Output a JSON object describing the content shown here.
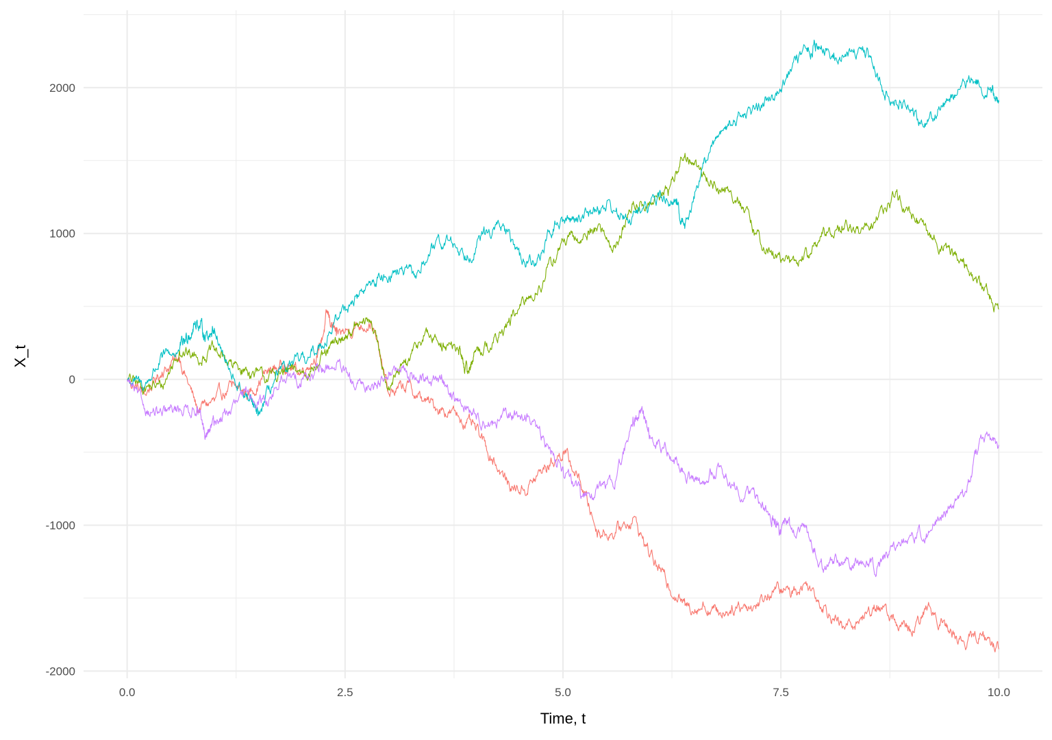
{
  "chart_data": {
    "type": "line",
    "xlabel": "Time, t",
    "ylabel": "X_t",
    "xlim": [
      -0.5,
      10.5
    ],
    "ylim": [
      -2050,
      2530
    ],
    "xticks": [
      0.0,
      2.5,
      5.0,
      7.5,
      10.0
    ],
    "xtick_labels": [
      "0.0",
      "2.5",
      "5.0",
      "7.5",
      "10.0"
    ],
    "yticks": [
      -2000,
      -1000,
      0,
      1000,
      2000
    ],
    "ytick_labels": [
      "-2000",
      "-1000",
      "0",
      "1000",
      "2000"
    ],
    "grid": true,
    "legend": "none",
    "series": [
      {
        "color": "#F8766D",
        "x": [
          0,
          0.2,
          0.4,
          0.6,
          0.8,
          1.0,
          1.2,
          1.4,
          1.6,
          1.8,
          2.0,
          2.2,
          2.3,
          2.4,
          2.6,
          2.8,
          3.0,
          3.2,
          3.4,
          3.6,
          3.8,
          4.0,
          4.2,
          4.4,
          4.6,
          4.8,
          5.0,
          5.2,
          5.4,
          5.6,
          5.8,
          6.0,
          6.2,
          6.4,
          6.6,
          6.8,
          7.0,
          7.2,
          7.4,
          7.6,
          7.8,
          8.0,
          8.2,
          8.4,
          8.6,
          8.8,
          9.0,
          9.2,
          9.4,
          9.6,
          9.8,
          10.0
        ],
        "y": [
          0,
          -100,
          50,
          150,
          -200,
          -150,
          -50,
          -100,
          50,
          100,
          50,
          200,
          450,
          300,
          350,
          400,
          -100,
          -50,
          -150,
          -200,
          -250,
          -350,
          -550,
          -750,
          -750,
          -600,
          -500,
          -700,
          -1050,
          -1050,
          -950,
          -1200,
          -1400,
          -1550,
          -1550,
          -1600,
          -1550,
          -1550,
          -1450,
          -1450,
          -1400,
          -1550,
          -1700,
          -1650,
          -1550,
          -1650,
          -1750,
          -1550,
          -1700,
          -1800,
          -1750,
          -1850
        ]
      },
      {
        "color": "#7CAE00",
        "x": [
          0,
          0.2,
          0.4,
          0.6,
          0.8,
          1.0,
          1.2,
          1.4,
          1.6,
          1.8,
          2.0,
          2.2,
          2.4,
          2.6,
          2.8,
          3.0,
          3.2,
          3.4,
          3.6,
          3.8,
          3.9,
          4.0,
          4.2,
          4.4,
          4.6,
          4.8,
          5.0,
          5.2,
          5.4,
          5.6,
          5.8,
          6.0,
          6.2,
          6.4,
          6.6,
          6.8,
          7.0,
          7.2,
          7.4,
          7.6,
          7.8,
          8.0,
          8.2,
          8.4,
          8.6,
          8.8,
          9.0,
          9.2,
          9.4,
          9.6,
          9.8,
          10.0
        ],
        "y": [
          0,
          -50,
          -50,
          200,
          150,
          200,
          100,
          50,
          0,
          50,
          50,
          100,
          250,
          350,
          400,
          -50,
          100,
          300,
          250,
          200,
          50,
          200,
          250,
          400,
          550,
          700,
          950,
          950,
          1050,
          900,
          1200,
          1200,
          1300,
          1550,
          1400,
          1300,
          1250,
          1000,
          850,
          800,
          850,
          1000,
          1050,
          1000,
          1100,
          1250,
          1100,
          1000,
          900,
          800,
          650,
          480
        ]
      },
      {
        "color": "#00BFC4",
        "x": [
          0,
          0.2,
          0.4,
          0.6,
          0.7,
          0.8,
          0.9,
          1.0,
          1.2,
          1.4,
          1.5,
          1.7,
          1.9,
          2.1,
          2.3,
          2.5,
          2.7,
          2.9,
          3.1,
          3.3,
          3.5,
          3.7,
          3.9,
          4.1,
          4.3,
          4.5,
          4.7,
          4.9,
          5.1,
          5.3,
          5.5,
          5.7,
          5.9,
          6.1,
          6.3,
          6.4,
          6.6,
          6.8,
          7.0,
          7.2,
          7.4,
          7.6,
          7.8,
          7.9,
          8.1,
          8.3,
          8.5,
          8.7,
          8.9,
          9.1,
          9.3,
          9.5,
          9.7,
          9.9,
          10.0
        ],
        "y": [
          0,
          -50,
          150,
          200,
          300,
          400,
          300,
          350,
          0,
          -150,
          -250,
          0,
          100,
          150,
          300,
          500,
          600,
          700,
          750,
          700,
          900,
          950,
          850,
          1000,
          1050,
          850,
          800,
          1050,
          1100,
          1150,
          1200,
          1100,
          1150,
          1250,
          1200,
          1050,
          1450,
          1700,
          1800,
          1850,
          1950,
          2100,
          2250,
          2300,
          2200,
          2250,
          2250,
          1950,
          1900,
          1750,
          1850,
          1950,
          2050,
          2000,
          1900
        ]
      },
      {
        "color": "#C77CFF",
        "x": [
          0,
          0.2,
          0.4,
          0.6,
          0.8,
          0.9,
          1.0,
          1.2,
          1.4,
          1.6,
          1.8,
          2.0,
          2.2,
          2.4,
          2.6,
          2.8,
          3.0,
          3.2,
          3.4,
          3.6,
          3.8,
          4.0,
          4.2,
          4.4,
          4.6,
          4.8,
          5.0,
          5.2,
          5.4,
          5.6,
          5.8,
          5.9,
          6.0,
          6.2,
          6.4,
          6.6,
          6.8,
          7.0,
          7.2,
          7.4,
          7.5,
          7.6,
          7.8,
          8.0,
          8.2,
          8.4,
          8.6,
          8.8,
          9.0,
          9.2,
          9.4,
          9.6,
          9.8,
          10.0
        ],
        "y": [
          0,
          -200,
          -250,
          -200,
          -200,
          -400,
          -300,
          -200,
          -100,
          -150,
          0,
          0,
          50,
          100,
          -50,
          -50,
          50,
          50,
          0,
          0,
          -150,
          -250,
          -300,
          -250,
          -250,
          -450,
          -600,
          -800,
          -750,
          -700,
          -300,
          -200,
          -400,
          -500,
          -650,
          -700,
          -600,
          -750,
          -800,
          -950,
          -1050,
          -1000,
          -1050,
          -1300,
          -1250,
          -1250,
          -1300,
          -1150,
          -1050,
          -1050,
          -900,
          -800,
          -400,
          -450
        ]
      }
    ]
  }
}
